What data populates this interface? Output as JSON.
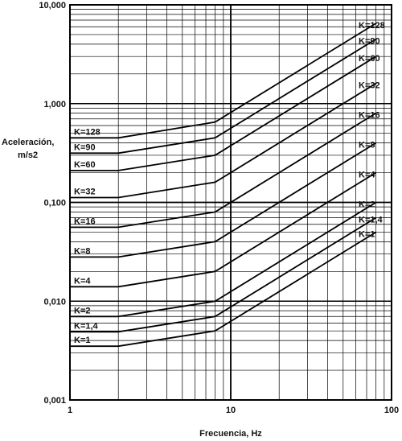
{
  "chart_data": {
    "type": "line",
    "title": "",
    "xlabel": "Frecuencia, Hz",
    "ylabel_lines": [
      "Aceleración,",
      "m/s2"
    ],
    "x_scale": "log",
    "y_scale": "log",
    "xlim": [
      1,
      100
    ],
    "ylim": [
      0.001,
      10
    ],
    "grid": true,
    "x_ticks": [
      {
        "value": 1,
        "label": "1"
      },
      {
        "value": 10,
        "label": "10"
      },
      {
        "value": 100,
        "label": "100"
      }
    ],
    "y_ticks": [
      {
        "value": 0.001,
        "label": "0,001"
      },
      {
        "value": 0.01,
        "label": "0,010"
      },
      {
        "value": 0.1,
        "label": "0,100"
      },
      {
        "value": 1,
        "label": "1,000"
      },
      {
        "value": 10,
        "label": "10,000"
      }
    ],
    "series": [
      {
        "name": "K=128",
        "points": [
          [
            1,
            0.45
          ],
          [
            2,
            0.45
          ],
          [
            8,
            0.65
          ],
          [
            80,
            6.5
          ]
        ]
      },
      {
        "name": "K=90",
        "points": [
          [
            1,
            0.315
          ],
          [
            2,
            0.315
          ],
          [
            8,
            0.45
          ],
          [
            80,
            4.5
          ]
        ]
      },
      {
        "name": "K=60",
        "points": [
          [
            1,
            0.21
          ],
          [
            2,
            0.21
          ],
          [
            8,
            0.3
          ],
          [
            80,
            3.0
          ]
        ]
      },
      {
        "name": "K=32",
        "points": [
          [
            1,
            0.112
          ],
          [
            2,
            0.112
          ],
          [
            8,
            0.16
          ],
          [
            80,
            1.6
          ]
        ]
      },
      {
        "name": "K=16",
        "points": [
          [
            1,
            0.056
          ],
          [
            2,
            0.056
          ],
          [
            8,
            0.08
          ],
          [
            80,
            0.8
          ]
        ]
      },
      {
        "name": "K=8",
        "points": [
          [
            1,
            0.028
          ],
          [
            2,
            0.028
          ],
          [
            8,
            0.04
          ],
          [
            80,
            0.4
          ]
        ]
      },
      {
        "name": "K=4",
        "points": [
          [
            1,
            0.014
          ],
          [
            2,
            0.014
          ],
          [
            8,
            0.02
          ],
          [
            80,
            0.2
          ]
        ]
      },
      {
        "name": "K=2",
        "points": [
          [
            1,
            0.007
          ],
          [
            2,
            0.007
          ],
          [
            8,
            0.01
          ],
          [
            80,
            0.1
          ]
        ]
      },
      {
        "name": "K=1,4",
        "points": [
          [
            1,
            0.0049
          ],
          [
            2,
            0.0049
          ],
          [
            8,
            0.007
          ],
          [
            80,
            0.07
          ]
        ]
      },
      {
        "name": "K=1",
        "points": [
          [
            1,
            0.0035
          ],
          [
            2,
            0.0035
          ],
          [
            8,
            0.005
          ],
          [
            80,
            0.05
          ]
        ]
      }
    ]
  }
}
